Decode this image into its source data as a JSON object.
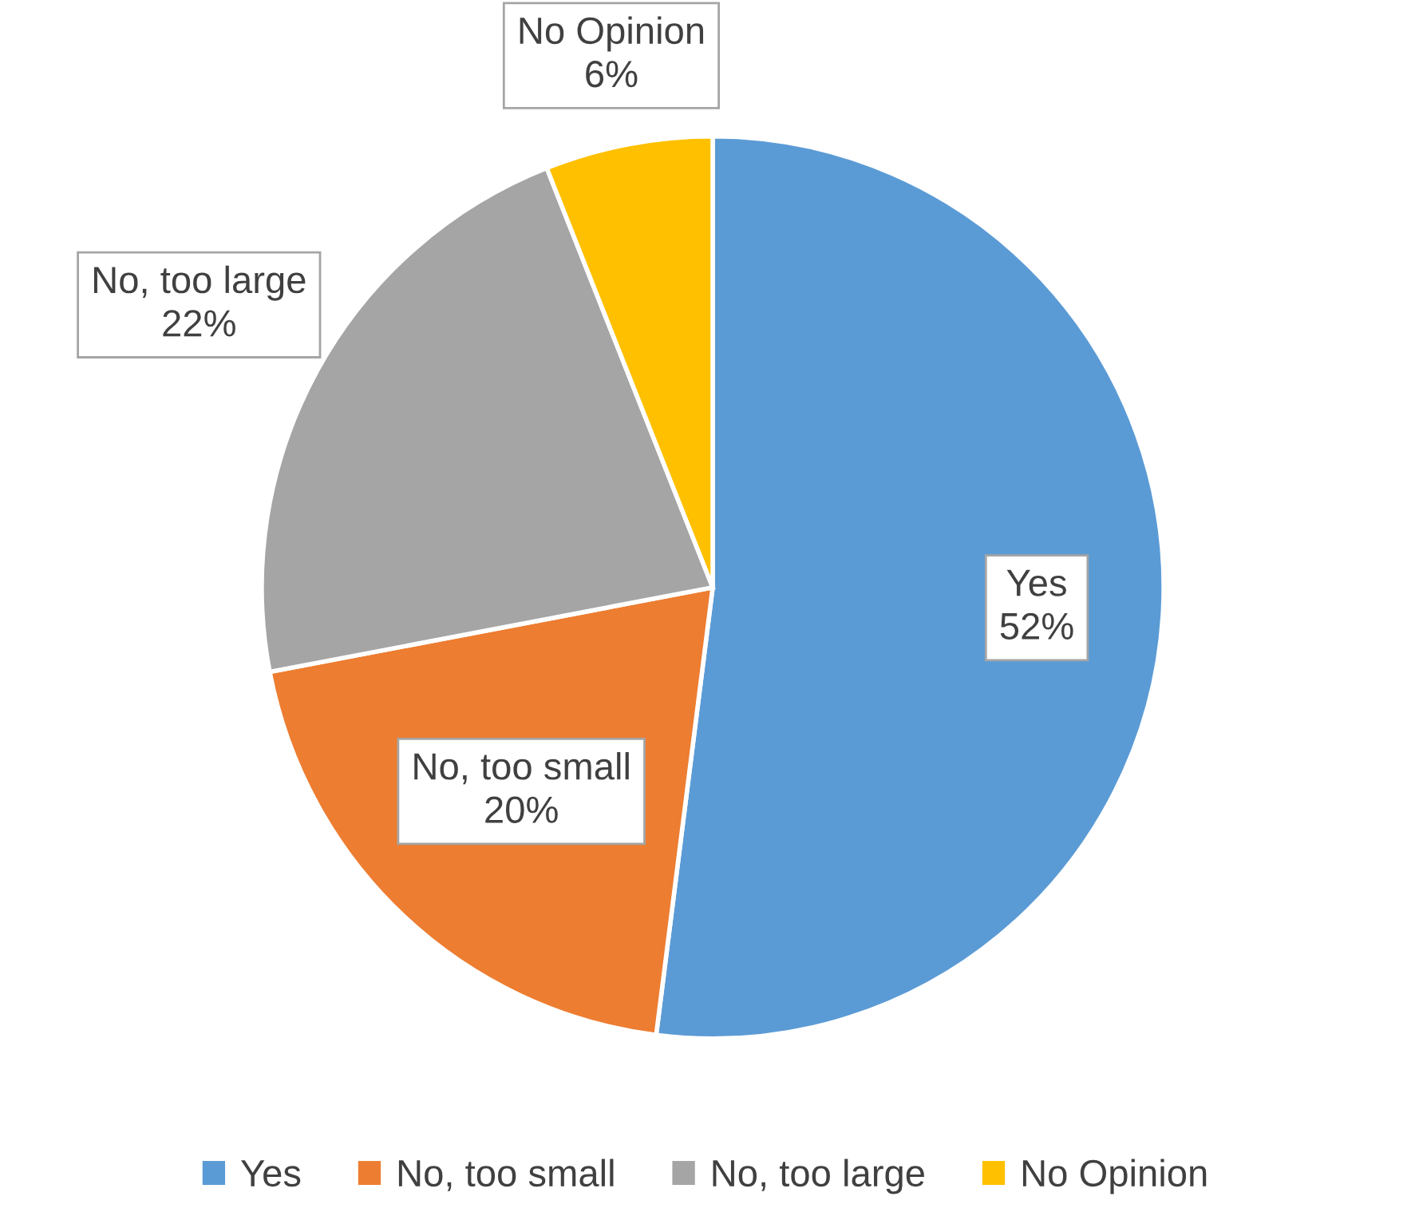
{
  "chart_data": {
    "type": "pie",
    "categories": [
      "Yes",
      "No, too small",
      "No, too large",
      "No Opinion"
    ],
    "values": [
      52,
      20,
      22,
      6
    ],
    "colors": [
      "#5b9bd5",
      "#ed7d31",
      "#a5a5a5",
      "#ffc000"
    ],
    "value_labels": [
      "52%",
      "20%",
      "22%",
      "6%"
    ],
    "legend": "bottom"
  }
}
